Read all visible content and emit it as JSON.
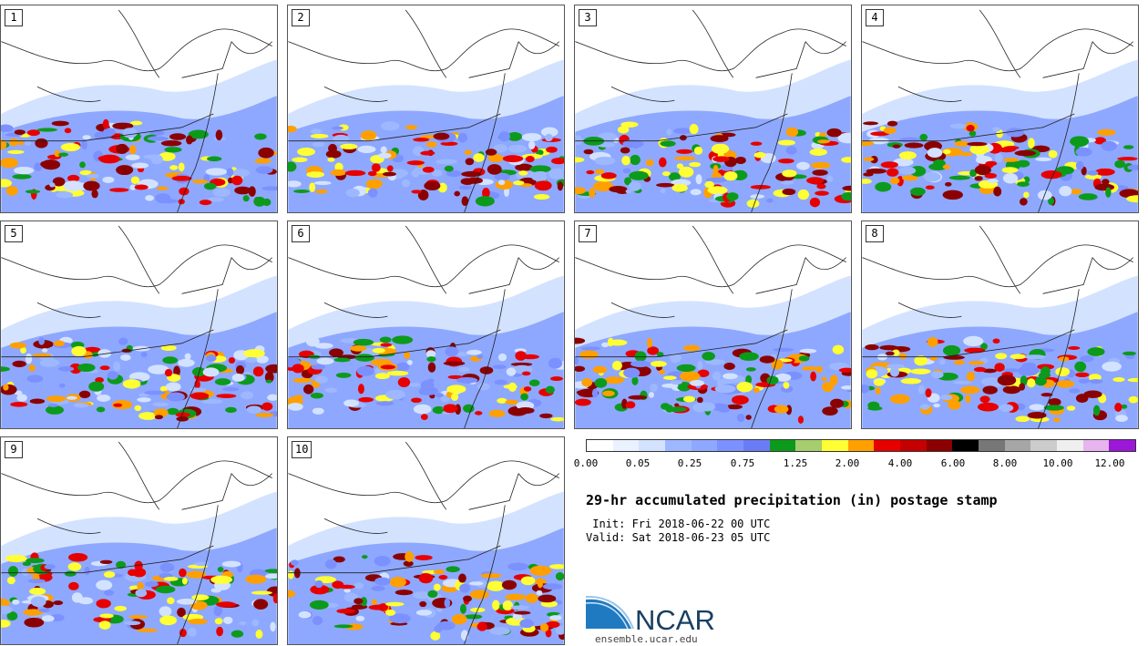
{
  "panels": [
    {
      "label": "1"
    },
    {
      "label": "2"
    },
    {
      "label": "3"
    },
    {
      "label": "4"
    },
    {
      "label": "5"
    },
    {
      "label": "6"
    },
    {
      "label": "7"
    },
    {
      "label": "8"
    },
    {
      "label": "9"
    },
    {
      "label": "10"
    }
  ],
  "colorbar": {
    "colors": [
      "#ffffff",
      "#eaf1ff",
      "#d3e2ff",
      "#9db8ff",
      "#8ea8ff",
      "#7b91ff",
      "#6a7cf5",
      "#0c9a1c",
      "#a6cd6e",
      "#ffff33",
      "#ff9f00",
      "#e70000",
      "#c40000",
      "#8b0000",
      "#000000",
      "#777777",
      "#a6a6a6",
      "#cccccc",
      "#efefef",
      "#e8b4f0",
      "#9b18d8"
    ],
    "tick_labels": [
      "0.00",
      "0.05",
      "0.25",
      "0.75",
      "1.25",
      "2.00",
      "4.00",
      "6.00",
      "8.00",
      "10.00",
      "12.00"
    ]
  },
  "title": "29-hr accumulated precipitation (in) postage stamp",
  "init_line": " Init: Fri 2018-06-22 00 UTC",
  "valid_line": "Valid: Sat 2018-06-23 05 UTC",
  "logo": {
    "text": "NCAR",
    "url": "ensemble.ucar.edu",
    "color": "#1a3f63",
    "accent": "#1f7ac2"
  }
}
